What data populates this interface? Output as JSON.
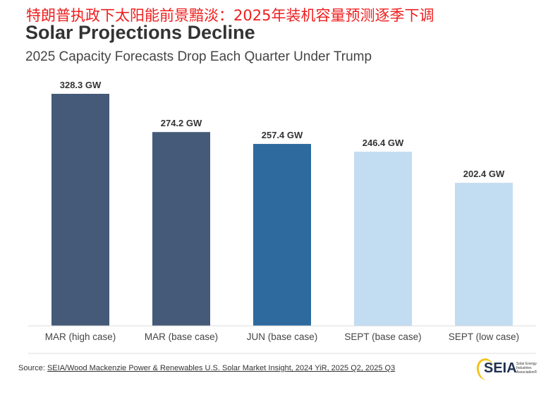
{
  "header": {
    "chinese_title": "特朗普执政下太阳能前景黯淡：2025年装机容量预测逐季下调",
    "title": "Solar Projections Decline",
    "subtitle": "2025 Capacity Forecasts Drop Each Quarter Under Trump"
  },
  "chart_data": {
    "type": "bar",
    "title": "Solar Projections Decline",
    "subtitle": "2025 Capacity Forecasts Drop Each Quarter Under Trump",
    "categories": [
      "MAR (high case)",
      "MAR (base case)",
      "JUN (base case)",
      "SEPT (base case)",
      "SEPT (low case)"
    ],
    "values": [
      328.3,
      274.2,
      257.4,
      246.4,
      202.4
    ],
    "data_labels": [
      "328.3 GW",
      "274.2 GW",
      "257.4 GW",
      "246.4 GW",
      "202.4 GW"
    ],
    "unit": "GW",
    "colors": [
      "#455a78",
      "#455a78",
      "#2e6a9e",
      "#c2dcf2",
      "#c2dcf2"
    ],
    "ylim": [
      0,
      330
    ],
    "grid": false,
    "legend": "none"
  },
  "footer": {
    "source_prefix": "Source: ",
    "source_link": "SEIA/Wood Mackenzie Power & Renewables U.S. Solar Market Insight, 2024 YiR, 2025 Q2, 2025 Q3",
    "logo_text": "SEIA",
    "logo_sub": "Solar Energy Industries Association®"
  }
}
